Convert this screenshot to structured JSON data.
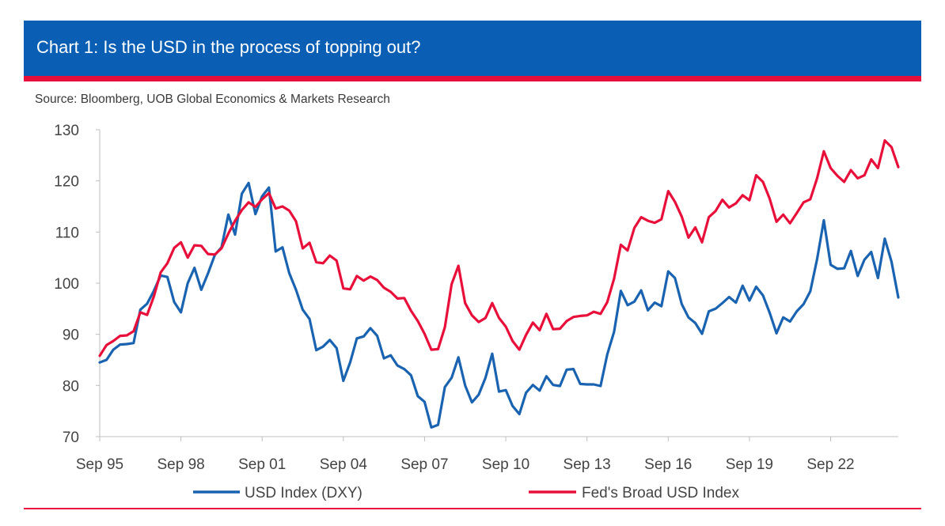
{
  "banner": {
    "title": "Chart 1: Is the USD in the process of topping out?"
  },
  "source": "Source: Bloomberg, UOB Global Economics & Markets Research",
  "colors": {
    "banner": "#0a5fb4",
    "rule": "#e8103a",
    "dxy": "#1a63b0",
    "broad": "#e8103a",
    "axis": "#bfbfbf",
    "text": "#444444"
  },
  "chart_data": {
    "type": "line",
    "title": "Chart 1: Is the USD in the process of topping out?",
    "xlabel": "",
    "ylabel": "",
    "grid": false,
    "legend": "bottom",
    "xlim": [
      0,
      29.5
    ],
    "ylim": [
      70,
      130
    ],
    "yticks": [
      70,
      80,
      90,
      100,
      110,
      120,
      130
    ],
    "xticks": [
      {
        "pos": 0,
        "label": "Sep 95"
      },
      {
        "pos": 3,
        "label": "Sep 98"
      },
      {
        "pos": 6,
        "label": "Sep 01"
      },
      {
        "pos": 9,
        "label": "Sep 04"
      },
      {
        "pos": 12,
        "label": "Sep 07"
      },
      {
        "pos": 15,
        "label": "Sep 10"
      },
      {
        "pos": 18,
        "label": "Sep 13"
      },
      {
        "pos": 21,
        "label": "Sep 16"
      },
      {
        "pos": 24,
        "label": "Sep 19"
      },
      {
        "pos": 27,
        "label": "Sep 22"
      }
    ],
    "series": [
      {
        "name": "USD Index (DXY)",
        "color": "#1a63b0",
        "x": [
          0,
          0.25,
          0.5,
          0.75,
          1.0,
          1.25,
          1.5,
          1.75,
          2.0,
          2.25,
          2.5,
          2.75,
          3.0,
          3.25,
          3.5,
          3.75,
          4.0,
          4.25,
          4.5,
          4.75,
          5.0,
          5.25,
          5.5,
          5.75,
          6.0,
          6.25,
          6.5,
          6.75,
          7.0,
          7.25,
          7.5,
          7.75,
          8.0,
          8.25,
          8.5,
          8.75,
          9.0,
          9.25,
          9.5,
          9.75,
          10.0,
          10.25,
          10.5,
          10.75,
          11.0,
          11.25,
          11.5,
          11.75,
          12.0,
          12.25,
          12.5,
          12.75,
          13.0,
          13.25,
          13.5,
          13.75,
          14.0,
          14.25,
          14.5,
          14.75,
          15.0,
          15.25,
          15.5,
          15.75,
          16.0,
          16.25,
          16.5,
          16.75,
          17.0,
          17.25,
          17.5,
          17.75,
          18.0,
          18.25,
          18.5,
          18.75,
          19.0,
          19.25,
          19.5,
          19.75,
          20.0,
          20.25,
          20.5,
          20.75,
          21.0,
          21.25,
          21.5,
          21.75,
          22.0,
          22.25,
          22.5,
          22.75,
          23.0,
          23.25,
          23.5,
          23.75,
          24.0,
          24.25,
          24.5,
          24.75,
          25.0,
          25.25,
          25.5,
          25.75,
          26.0,
          26.25,
          26.5,
          26.75,
          27.0,
          27.25,
          27.5,
          27.75,
          28.0,
          28.25,
          28.5,
          28.75,
          29.0,
          29.25,
          29.5
        ],
        "values": [
          84.5,
          85.0,
          87.0,
          88.0,
          88.1,
          88.3,
          94.8,
          96.0,
          98.5,
          101.5,
          101.2,
          96.3,
          94.3,
          100.0,
          103.0,
          98.7,
          101.9,
          105.5,
          107.0,
          113.4,
          109.5,
          117.5,
          119.6,
          113.5,
          117.0,
          118.7,
          106.2,
          107.0,
          102.0,
          98.7,
          94.8,
          93.0,
          86.9,
          87.6,
          88.9,
          87.3,
          80.9,
          84.5,
          89.2,
          89.6,
          91.2,
          89.7,
          85.3,
          85.9,
          83.9,
          83.2,
          82.0,
          77.9,
          76.8,
          71.8,
          72.3,
          79.7,
          81.5,
          85.5,
          80.0,
          76.7,
          78.2,
          81.5,
          86.2,
          78.8,
          79.1,
          76.0,
          74.4,
          78.6,
          80.1,
          79.0,
          81.8,
          80.1,
          79.9,
          83.1,
          83.2,
          80.3,
          80.2,
          80.2,
          79.9,
          86.1,
          90.5,
          98.5,
          95.7,
          96.4,
          98.6,
          94.7,
          96.2,
          95.5,
          102.3,
          101.0,
          95.9,
          93.3,
          92.2,
          90.1,
          94.5,
          95.0,
          96.1,
          97.3,
          96.2,
          99.5,
          96.6,
          99.3,
          97.6,
          94.2,
          90.2,
          93.3,
          92.5,
          94.5,
          95.9,
          98.4,
          104.7,
          112.3,
          103.6,
          102.8,
          102.9,
          106.3,
          101.4,
          104.6,
          106.1,
          101.0,
          108.7,
          104.2,
          97.2
        ]
      },
      {
        "name": "Fed's Broad USD Index",
        "color": "#e8103a",
        "x": [
          0,
          0.25,
          0.5,
          0.75,
          1.0,
          1.25,
          1.5,
          1.75,
          2.0,
          2.25,
          2.5,
          2.75,
          3.0,
          3.25,
          3.5,
          3.75,
          4.0,
          4.25,
          4.5,
          4.75,
          5.0,
          5.25,
          5.5,
          5.75,
          6.0,
          6.25,
          6.5,
          6.75,
          7.0,
          7.25,
          7.5,
          7.75,
          8.0,
          8.25,
          8.5,
          8.75,
          9.0,
          9.25,
          9.5,
          9.75,
          10.0,
          10.25,
          10.5,
          10.75,
          11.0,
          11.25,
          11.5,
          11.75,
          12.0,
          12.25,
          12.5,
          12.75,
          13.0,
          13.25,
          13.5,
          13.75,
          14.0,
          14.25,
          14.5,
          14.75,
          15.0,
          15.25,
          15.5,
          15.75,
          16.0,
          16.25,
          16.5,
          16.75,
          17.0,
          17.25,
          17.5,
          17.75,
          18.0,
          18.25,
          18.5,
          18.75,
          19.0,
          19.25,
          19.5,
          19.75,
          20.0,
          20.25,
          20.5,
          20.75,
          21.0,
          21.25,
          21.5,
          21.75,
          22.0,
          22.25,
          22.5,
          22.75,
          23.0,
          23.25,
          23.5,
          23.75,
          24.0,
          24.25,
          24.5,
          24.75,
          25.0,
          25.25,
          25.5,
          25.75,
          26.0,
          26.25,
          26.5,
          26.75,
          27.0,
          27.25,
          27.5,
          27.75,
          28.0,
          28.25,
          28.5,
          28.75,
          29.0,
          29.25,
          29.5
        ],
        "values": [
          85.8,
          87.9,
          88.7,
          89.7,
          89.8,
          90.6,
          94.3,
          93.8,
          97.4,
          102.1,
          103.9,
          106.9,
          108.0,
          105.0,
          107.4,
          107.3,
          105.7,
          105.6,
          106.8,
          109.7,
          112.2,
          114.3,
          115.8,
          114.9,
          116.4,
          117.6,
          114.6,
          115.0,
          114.2,
          112.1,
          106.8,
          107.9,
          104.1,
          103.9,
          105.4,
          104.4,
          99.0,
          98.8,
          101.4,
          100.5,
          101.3,
          100.6,
          99.1,
          98.3,
          97.0,
          97.1,
          94.6,
          92.6,
          90.1,
          87.0,
          87.1,
          91.4,
          99.8,
          103.4,
          96.1,
          93.7,
          92.4,
          93.2,
          96.1,
          93.2,
          91.5,
          88.7,
          87.0,
          89.9,
          92.3,
          90.8,
          94.0,
          91.0,
          91.1,
          92.6,
          93.4,
          93.6,
          93.7,
          94.4,
          94.0,
          96.3,
          100.9,
          107.5,
          106.4,
          110.8,
          112.9,
          112.2,
          111.8,
          112.5,
          118.0,
          115.9,
          113.0,
          108.9,
          110.9,
          108.0,
          112.9,
          114.1,
          116.3,
          114.8,
          115.6,
          117.2,
          116.2,
          121.1,
          119.8,
          116.5,
          112.0,
          113.4,
          111.7,
          113.7,
          115.8,
          116.4,
          120.5,
          125.8,
          122.5,
          121.0,
          119.8,
          122.1,
          120.5,
          121.1,
          124.2,
          122.5,
          127.9,
          126.6,
          122.7
        ]
      }
    ]
  }
}
